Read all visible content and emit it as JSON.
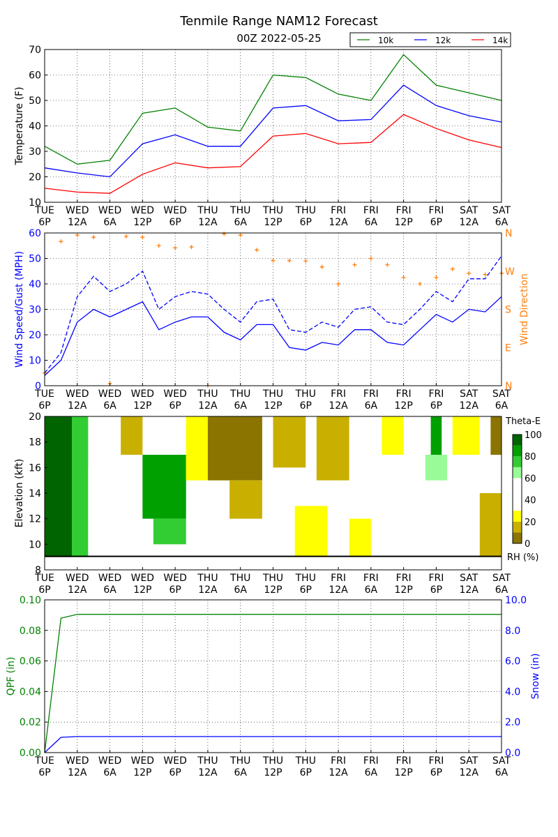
{
  "title": "Tenmile Range NAM12 Forecast",
  "subtitle": "00Z 2022-05-25",
  "x_ticks": [
    [
      "TUE",
      "6P"
    ],
    [
      "WED",
      "12A"
    ],
    [
      "WED",
      "6A"
    ],
    [
      "WED",
      "12P"
    ],
    [
      "WED",
      "6P"
    ],
    [
      "THU",
      "12A"
    ],
    [
      "THU",
      "6A"
    ],
    [
      "THU",
      "12P"
    ],
    [
      "THU",
      "6P"
    ],
    [
      "FRI",
      "12A"
    ],
    [
      "FRI",
      "6A"
    ],
    [
      "FRI",
      "12P"
    ],
    [
      "FRI",
      "6P"
    ],
    [
      "SAT",
      "12A"
    ],
    [
      "SAT",
      "6A"
    ]
  ],
  "colors": {
    "k10": "#008000",
    "k12": "#0000ff",
    "k14": "#ff0000",
    "wind_dir": "#ff7f0e",
    "qpf": "#008000",
    "snow": "#0000ff"
  },
  "chart_data": [
    {
      "id": "temperature",
      "type": "line",
      "ylabel": "Temperature (F)",
      "ylim": [
        10,
        70
      ],
      "yticks": [
        "10",
        "20",
        "30",
        "40",
        "50",
        "60",
        "70"
      ],
      "grid": true,
      "legend": "top-right",
      "x_hours": [
        0,
        6,
        12,
        18,
        24,
        30,
        36,
        42,
        48,
        54,
        60,
        66,
        72,
        78,
        84
      ],
      "series": [
        {
          "name": "10k",
          "color": "#008000",
          "values": [
            32,
            25,
            26.5,
            45,
            47,
            39.5,
            38,
            60,
            59,
            52.5,
            50,
            68,
            56,
            53,
            50
          ]
        },
        {
          "name": "12k",
          "color": "#0000ff",
          "values": [
            23.5,
            21.5,
            20,
            33,
            36.5,
            32,
            32,
            47,
            48,
            42,
            42.5,
            56,
            48,
            44,
            41.5
          ]
        },
        {
          "name": "14k",
          "color": "#ff0000",
          "values": [
            15.5,
            14,
            13.5,
            21,
            25.5,
            23.5,
            24,
            36,
            37,
            33,
            33.5,
            44.5,
            39,
            34.5,
            31.5
          ]
        }
      ]
    },
    {
      "id": "wind",
      "type": "line",
      "ylabel": "Wind Speed/Gust (MPH)",
      "y2label": "Wind Direction",
      "ylim": [
        0,
        60
      ],
      "yticks": [
        "0",
        "10",
        "20",
        "30",
        "40",
        "50",
        "60"
      ],
      "y2ticks": [
        "N",
        "E",
        "S",
        "W",
        "N"
      ],
      "grid": true,
      "x_hours": [
        0,
        3,
        6,
        9,
        12,
        15,
        18,
        21,
        24,
        27,
        30,
        33,
        36,
        39,
        42,
        45,
        48,
        51,
        54,
        57,
        60,
        63,
        66,
        69,
        72,
        75,
        78,
        81,
        84
      ],
      "series": [
        {
          "name": "speed",
          "color": "#0000ff",
          "values": [
            4,
            10,
            25,
            30,
            27,
            30,
            33,
            22,
            25,
            27,
            27,
            21,
            18,
            24,
            24,
            15,
            14,
            17,
            16,
            22,
            22,
            17,
            16,
            22,
            28,
            25,
            30,
            29,
            35
          ]
        },
        {
          "name": "gust",
          "color": "#0000ff",
          "dash": true,
          "values": [
            5,
            13,
            35,
            43,
            37,
            40,
            45,
            30,
            35,
            37,
            36,
            30,
            25,
            33,
            34,
            22,
            21,
            25,
            23,
            30,
            31,
            25,
            24,
            30,
            37,
            33,
            42,
            42,
            51
          ]
        }
      ],
      "direction_deg": [
        30,
        340,
        355,
        350,
        5,
        352,
        350,
        330,
        325,
        327,
        360,
        358,
        355,
        320,
        295,
        295,
        294,
        280,
        240,
        285,
        300,
        285,
        255,
        240,
        255,
        275,
        265,
        262,
        265
      ]
    },
    {
      "id": "theta_e_rh",
      "type": "heatmap",
      "ylabel": "Elevation (kft)",
      "ylim": [
        8,
        20
      ],
      "yticks": [
        "8",
        "10",
        "12",
        "14",
        "16",
        "18",
        "20"
      ],
      "colorbar_title": "Theta-E",
      "colorbar_label": "RH (%)",
      "colorbar_ticks": [
        "0",
        "20",
        "40",
        "60",
        "80",
        "100"
      ],
      "rh_bins": [
        {
          "range": [
            0,
            10
          ],
          "color": "#8b7500"
        },
        {
          "range": [
            10,
            20
          ],
          "color": "#c9b000"
        },
        {
          "range": [
            20,
            30
          ],
          "color": "#ffff00"
        },
        {
          "range": [
            30,
            60
          ],
          "color": "#ffffff"
        },
        {
          "range": [
            60,
            70
          ],
          "color": "#98fb98"
        },
        {
          "range": [
            70,
            80
          ],
          "color": "#32cd32"
        },
        {
          "range": [
            80,
            90
          ],
          "color": "#00a000"
        },
        {
          "range": [
            90,
            100
          ],
          "color": "#006400"
        }
      ],
      "rh_regions": [
        {
          "x": [
            0,
            5
          ],
          "y": [
            9,
            20
          ],
          "rh": 93
        },
        {
          "x": [
            5,
            8
          ],
          "y": [
            9,
            20
          ],
          "rh": 75
        },
        {
          "x": [
            8,
            14
          ],
          "y": [
            9,
            16
          ],
          "rh": 45
        },
        {
          "x": [
            14,
            18
          ],
          "y": [
            17,
            20
          ],
          "rh": 15
        },
        {
          "x": [
            18,
            26
          ],
          "y": [
            12,
            17
          ],
          "rh": 86
        },
        {
          "x": [
            20,
            26
          ],
          "y": [
            10,
            12
          ],
          "rh": 75
        },
        {
          "x": [
            26,
            34
          ],
          "y": [
            15,
            20
          ],
          "rh": 25
        },
        {
          "x": [
            30,
            40
          ],
          "y": [
            15,
            20
          ],
          "rh": 8
        },
        {
          "x": [
            34,
            40
          ],
          "y": [
            12,
            15
          ],
          "rh": 18
        },
        {
          "x": [
            42,
            48
          ],
          "y": [
            16,
            20
          ],
          "rh": 12
        },
        {
          "x": [
            46,
            52
          ],
          "y": [
            9,
            13
          ],
          "rh": 25
        },
        {
          "x": [
            50,
            56
          ],
          "y": [
            15,
            20
          ],
          "rh": 15
        },
        {
          "x": [
            56,
            60
          ],
          "y": [
            9,
            12
          ],
          "rh": 25
        },
        {
          "x": [
            62,
            66
          ],
          "y": [
            17,
            20
          ],
          "rh": 25
        },
        {
          "x": [
            71,
            73
          ],
          "y": [
            17,
            20
          ],
          "rh": 85
        },
        {
          "x": [
            70,
            74
          ],
          "y": [
            15,
            17
          ],
          "rh": 65
        },
        {
          "x": [
            75,
            80
          ],
          "y": [
            17,
            20
          ],
          "rh": 25
        },
        {
          "x": [
            80,
            84
          ],
          "y": [
            9,
            14
          ],
          "rh": 15
        },
        {
          "x": [
            82,
            84
          ],
          "y": [
            17,
            20
          ],
          "rh": 8
        }
      ]
    },
    {
      "id": "precip",
      "type": "line",
      "ylabel": "QPF (in)",
      "y2label": "Snow (in)",
      "ylim": [
        0,
        0.1
      ],
      "y2lim": [
        0,
        10
      ],
      "yticks": [
        "0.00",
        "0.02",
        "0.04",
        "0.06",
        "0.08",
        "0.10"
      ],
      "y2ticks": [
        "0.0",
        "2.0",
        "4.0",
        "6.0",
        "8.0",
        "10.0"
      ],
      "grid": true,
      "x_hours": [
        0,
        3,
        6,
        84
      ],
      "series": [
        {
          "name": "QPF",
          "color": "#008000",
          "axis": "left",
          "values": [
            0,
            0.088,
            0.0905,
            0.0905
          ]
        },
        {
          "name": "Snow",
          "color": "#0000ff",
          "axis": "right",
          "values": [
            0,
            1.0,
            1.05,
            1.05
          ]
        }
      ]
    }
  ]
}
